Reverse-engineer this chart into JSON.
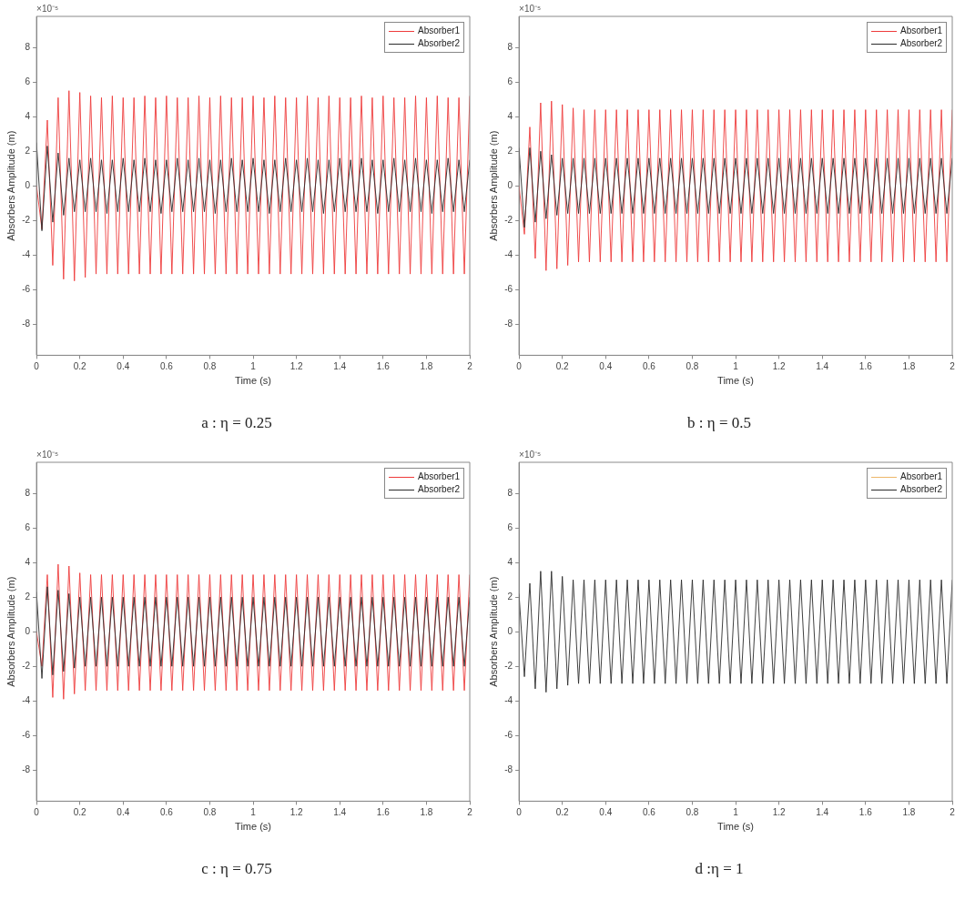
{
  "chart_data": [
    {
      "type": "line",
      "title": "a : η = 0.25",
      "xlabel": "Time (s)",
      "ylabel": "Absorbers Amplitude (m)",
      "annotations": [
        "×10⁻⁵"
      ],
      "legend": "top right",
      "marker": "none",
      "xlim": [
        0,
        2
      ],
      "ylim": [
        -9.8,
        9.8
      ],
      "xticks": [
        0,
        0.2,
        0.4,
        0.6,
        0.8,
        1,
        1.2,
        1.4,
        1.6,
        1.8,
        2
      ],
      "yticks": [
        -8,
        -6,
        -4,
        -2,
        0,
        2,
        4,
        6,
        8
      ],
      "x": [
        0,
        0.025,
        0.05,
        0.075,
        0.1,
        0.125,
        0.15,
        0.175,
        0.2,
        0.225,
        0.25,
        0.275,
        0.3,
        0.325,
        0.35,
        0.375,
        0.4,
        0.425,
        0.45,
        0.475,
        0.5,
        0.525,
        0.55,
        0.575,
        0.6,
        0.625,
        0.65,
        0.675,
        0.7,
        0.725,
        0.75,
        0.775,
        0.8,
        0.825,
        0.85,
        0.875,
        0.9,
        0.925,
        0.95,
        0.975,
        1,
        1.025,
        1.05,
        1.075,
        1.1,
        1.125,
        1.15,
        1.175,
        1.2,
        1.225,
        1.25,
        1.275,
        1.3,
        1.325,
        1.35,
        1.375,
        1.4,
        1.425,
        1.45,
        1.475,
        1.5,
        1.525,
        1.55,
        1.575,
        1.6,
        1.625,
        1.65,
        1.675,
        1.7,
        1.725,
        1.75,
        1.775,
        1.8,
        1.825,
        1.85,
        1.875,
        1.9,
        1.925,
        1.95,
        1.975,
        2
      ],
      "series": [
        {
          "name": "Absorber1",
          "color": "#ee3b3b",
          "values": [
            0,
            -2.5,
            3.8,
            -4.6,
            5.1,
            -5.4,
            5.5,
            -5.5,
            5.4,
            -5.3,
            5.2,
            -5.1,
            5.1,
            -5.1,
            5.2,
            -5.1,
            5.1,
            -5.1,
            5.1,
            -5.1,
            5.2,
            -5.1,
            5.1,
            -5.1,
            5.2,
            -5.1,
            5.1,
            -5.1,
            5.1,
            -5.1,
            5.2,
            -5.1,
            5.1,
            -5.1,
            5.2,
            -5.1,
            5.1,
            -5.1,
            5.1,
            -5.1,
            5.2,
            -5.1,
            5.1,
            -5.1,
            5.2,
            -5.1,
            5.1,
            -5.1,
            5.1,
            -5.1,
            5.2,
            -5.1,
            5.1,
            -5.1,
            5.2,
            -5.1,
            5.1,
            -5.1,
            5.1,
            -5.1,
            5.2,
            -5.1,
            5.1,
            -5.1,
            5.2,
            -5.1,
            5.1,
            -5.1,
            5.1,
            -5.1,
            5.2,
            -5.1,
            5.1,
            -5.1,
            5.2,
            -5.1,
            5.1,
            -5.1,
            5.1,
            -5.1,
            5.2
          ]
        },
        {
          "name": "Absorber2",
          "color": "#2b2b2b",
          "values": [
            2.5,
            -2.6,
            2.3,
            -2.1,
            1.9,
            -1.7,
            1.6,
            -1.5,
            1.5,
            -1.5,
            1.6,
            -1.5,
            1.5,
            -1.6,
            1.5,
            -1.5,
            1.6,
            -1.5,
            1.5,
            -1.5,
            1.6,
            -1.5,
            1.5,
            -1.6,
            1.5,
            -1.5,
            1.6,
            -1.5,
            1.5,
            -1.5,
            1.6,
            -1.5,
            1.5,
            -1.6,
            1.5,
            -1.5,
            1.6,
            -1.5,
            1.5,
            -1.5,
            1.6,
            -1.5,
            1.5,
            -1.6,
            1.5,
            -1.5,
            1.6,
            -1.5,
            1.5,
            -1.5,
            1.6,
            -1.5,
            1.5,
            -1.6,
            1.5,
            -1.5,
            1.6,
            -1.5,
            1.5,
            -1.5,
            1.6,
            -1.5,
            1.5,
            -1.6,
            1.5,
            -1.5,
            1.6,
            -1.5,
            1.5,
            -1.5,
            1.6,
            -1.5,
            1.5,
            -1.6,
            1.5,
            -1.5,
            1.6,
            -1.5,
            1.5,
            -1.5,
            1.5
          ]
        }
      ]
    },
    {
      "type": "line",
      "title": "b : η = 0.5",
      "xlabel": "Time (s)",
      "ylabel": "Absorbers Amplitude (m)",
      "annotations": [
        "×10⁻⁵"
      ],
      "legend": "top right",
      "marker": "none",
      "xlim": [
        0,
        2
      ],
      "ylim": [
        -9.8,
        9.8
      ],
      "xticks": [
        0,
        0.2,
        0.4,
        0.6,
        0.8,
        1,
        1.2,
        1.4,
        1.6,
        1.8,
        2
      ],
      "yticks": [
        -8,
        -6,
        -4,
        -2,
        0,
        2,
        4,
        6,
        8
      ],
      "x": [
        0,
        0.025,
        0.05,
        0.075,
        0.1,
        0.125,
        0.15,
        0.175,
        0.2,
        0.225,
        0.25,
        0.275,
        0.3,
        0.325,
        0.35,
        0.375,
        0.4,
        0.425,
        0.45,
        0.475,
        0.5,
        0.525,
        0.55,
        0.575,
        0.6,
        0.625,
        0.65,
        0.675,
        0.7,
        0.725,
        0.75,
        0.775,
        0.8,
        0.825,
        0.85,
        0.875,
        0.9,
        0.925,
        0.95,
        0.975,
        1,
        1.025,
        1.05,
        1.075,
        1.1,
        1.125,
        1.15,
        1.175,
        1.2,
        1.225,
        1.25,
        1.275,
        1.3,
        1.325,
        1.35,
        1.375,
        1.4,
        1.425,
        1.45,
        1.475,
        1.5,
        1.525,
        1.55,
        1.575,
        1.6,
        1.625,
        1.65,
        1.675,
        1.7,
        1.725,
        1.75,
        1.775,
        1.8,
        1.825,
        1.85,
        1.875,
        1.9,
        1.925,
        1.95,
        1.975,
        2
      ],
      "series": [
        {
          "name": "Absorber1",
          "color": "#ee3b3b",
          "values": [
            0,
            -2.8,
            3.4,
            -4.2,
            4.8,
            -4.9,
            4.9,
            -4.8,
            4.7,
            -4.6,
            4.5,
            -4.4,
            4.4,
            -4.4,
            4.4,
            -4.4,
            4.4,
            -4.4,
            4.4,
            -4.4,
            4.4,
            -4.4,
            4.4,
            -4.4,
            4.4,
            -4.4,
            4.4,
            -4.4,
            4.4,
            -4.4,
            4.4,
            -4.4,
            4.4,
            -4.4,
            4.4,
            -4.4,
            4.4,
            -4.4,
            4.4,
            -4.4,
            4.4,
            -4.4,
            4.4,
            -4.4,
            4.4,
            -4.4,
            4.4,
            -4.4,
            4.4,
            -4.4,
            4.4,
            -4.4,
            4.4,
            -4.4,
            4.4,
            -4.4,
            4.4,
            -4.4,
            4.4,
            -4.4,
            4.4,
            -4.4,
            4.4,
            -4.4,
            4.4,
            -4.4,
            4.4,
            -4.4,
            4.4,
            -4.4,
            4.4,
            -4.4,
            4.4,
            -4.4,
            4.4,
            -4.4,
            4.4,
            -4.4,
            4.4,
            -4.4,
            4.4
          ]
        },
        {
          "name": "Absorber2",
          "color": "#2b2b2b",
          "values": [
            2.2,
            -2.4,
            2.2,
            -2.1,
            2.0,
            -1.9,
            1.8,
            -1.7,
            1.6,
            -1.6,
            1.6,
            -1.6,
            1.6,
            -1.6,
            1.6,
            -1.6,
            1.6,
            -1.6,
            1.6,
            -1.6,
            1.6,
            -1.6,
            1.6,
            -1.6,
            1.6,
            -1.6,
            1.6,
            -1.6,
            1.6,
            -1.6,
            1.6,
            -1.6,
            1.6,
            -1.6,
            1.6,
            -1.6,
            1.6,
            -1.6,
            1.6,
            -1.6,
            1.6,
            -1.6,
            1.6,
            -1.6,
            1.6,
            -1.6,
            1.6,
            -1.6,
            1.6,
            -1.6,
            1.6,
            -1.6,
            1.6,
            -1.6,
            1.6,
            -1.6,
            1.6,
            -1.6,
            1.6,
            -1.6,
            1.6,
            -1.6,
            1.6,
            -1.6,
            1.6,
            -1.6,
            1.6,
            -1.6,
            1.6,
            -1.6,
            1.6,
            -1.6,
            1.6,
            -1.6,
            1.6,
            -1.6,
            1.6,
            -1.6,
            1.6,
            -1.6,
            1.6
          ]
        }
      ]
    },
    {
      "type": "line",
      "title": "c : η = 0.75",
      "xlabel": "Time (s)",
      "ylabel": "Absorbers Amplitude (m)",
      "annotations": [
        "×10⁻⁵"
      ],
      "legend": "top right",
      "marker": "none",
      "xlim": [
        0,
        2
      ],
      "ylim": [
        -9.8,
        9.8
      ],
      "xticks": [
        0,
        0.2,
        0.4,
        0.6,
        0.8,
        1,
        1.2,
        1.4,
        1.6,
        1.8,
        2
      ],
      "yticks": [
        -8,
        -6,
        -4,
        -2,
        0,
        2,
        4,
        6,
        8
      ],
      "x": [
        0,
        0.025,
        0.05,
        0.075,
        0.1,
        0.125,
        0.15,
        0.175,
        0.2,
        0.225,
        0.25,
        0.275,
        0.3,
        0.325,
        0.35,
        0.375,
        0.4,
        0.425,
        0.45,
        0.475,
        0.5,
        0.525,
        0.55,
        0.575,
        0.6,
        0.625,
        0.65,
        0.675,
        0.7,
        0.725,
        0.75,
        0.775,
        0.8,
        0.825,
        0.85,
        0.875,
        0.9,
        0.925,
        0.95,
        0.975,
        1,
        1.025,
        1.05,
        1.075,
        1.1,
        1.125,
        1.15,
        1.175,
        1.2,
        1.225,
        1.25,
        1.275,
        1.3,
        1.325,
        1.35,
        1.375,
        1.4,
        1.425,
        1.45,
        1.475,
        1.5,
        1.525,
        1.55,
        1.575,
        1.6,
        1.625,
        1.65,
        1.675,
        1.7,
        1.725,
        1.75,
        1.775,
        1.8,
        1.825,
        1.85,
        1.875,
        1.9,
        1.925,
        1.95,
        1.975,
        2
      ],
      "series": [
        {
          "name": "Absorber1",
          "color": "#ee3b3b",
          "values": [
            0,
            -2.0,
            3.3,
            -3.8,
            3.9,
            -3.9,
            3.8,
            -3.6,
            3.4,
            -3.4,
            3.3,
            -3.4,
            3.3,
            -3.4,
            3.3,
            -3.4,
            3.3,
            -3.4,
            3.3,
            -3.4,
            3.3,
            -3.4,
            3.3,
            -3.4,
            3.3,
            -3.4,
            3.3,
            -3.4,
            3.3,
            -3.4,
            3.3,
            -3.4,
            3.3,
            -3.4,
            3.3,
            -3.4,
            3.3,
            -3.4,
            3.3,
            -3.4,
            3.3,
            -3.4,
            3.3,
            -3.4,
            3.3,
            -3.4,
            3.3,
            -3.4,
            3.3,
            -3.4,
            3.3,
            -3.4,
            3.3,
            -3.4,
            3.3,
            -3.4,
            3.3,
            -3.4,
            3.3,
            -3.4,
            3.3,
            -3.4,
            3.3,
            -3.4,
            3.3,
            -3.4,
            3.3,
            -3.4,
            3.3,
            -3.4,
            3.3,
            -3.4,
            3.3,
            -3.4,
            3.3,
            -3.4,
            3.3,
            -3.4,
            3.3,
            -3.4,
            3.3
          ]
        },
        {
          "name": "Absorber2",
          "color": "#2b2b2b",
          "values": [
            2.3,
            -2.7,
            2.6,
            -2.5,
            2.4,
            -2.3,
            2.2,
            -2.1,
            2.0,
            -2.0,
            2.0,
            -2.0,
            2.0,
            -2.0,
            2.0,
            -2.0,
            2.0,
            -2.0,
            2.0,
            -2.0,
            2.0,
            -2.0,
            2.0,
            -2.0,
            2.0,
            -2.0,
            2.0,
            -2.0,
            2.0,
            -2.0,
            2.0,
            -2.0,
            2.0,
            -2.0,
            2.0,
            -2.0,
            2.0,
            -2.0,
            2.0,
            -2.0,
            2.0,
            -2.0,
            2.0,
            -2.0,
            2.0,
            -2.0,
            2.0,
            -2.0,
            2.0,
            -2.0,
            2.0,
            -2.0,
            2.0,
            -2.0,
            2.0,
            -2.0,
            2.0,
            -2.0,
            2.0,
            -2.0,
            2.0,
            -2.0,
            2.0,
            -2.0,
            2.0,
            -2.0,
            2.0,
            -2.0,
            2.0,
            -2.0,
            2.0,
            -2.0,
            2.0,
            -2.0,
            2.0,
            -2.0,
            2.0,
            -2.0,
            2.0,
            -2.0,
            2.0
          ]
        }
      ]
    },
    {
      "type": "line",
      "title": "d :η = 1",
      "xlabel": "Time (s)",
      "ylabel": "Absorbers Amplitude (m)",
      "annotations": [
        "×10⁻⁵"
      ],
      "legend": "top right",
      "marker": "none",
      "xlim": [
        0,
        2
      ],
      "ylim": [
        -9.8,
        9.8
      ],
      "xticks": [
        0,
        0.2,
        0.4,
        0.6,
        0.8,
        1,
        1.2,
        1.4,
        1.6,
        1.8,
        2
      ],
      "yticks": [
        -8,
        -6,
        -4,
        -2,
        0,
        2,
        4,
        6,
        8
      ],
      "x": [
        0,
        0.025,
        0.05,
        0.075,
        0.1,
        0.125,
        0.15,
        0.175,
        0.2,
        0.225,
        0.25,
        0.275,
        0.3,
        0.325,
        0.35,
        0.375,
        0.4,
        0.425,
        0.45,
        0.475,
        0.5,
        0.525,
        0.55,
        0.575,
        0.6,
        0.625,
        0.65,
        0.675,
        0.7,
        0.725,
        0.75,
        0.775,
        0.8,
        0.825,
        0.85,
        0.875,
        0.9,
        0.925,
        0.95,
        0.975,
        1,
        1.025,
        1.05,
        1.075,
        1.1,
        1.125,
        1.15,
        1.175,
        1.2,
        1.225,
        1.25,
        1.275,
        1.3,
        1.325,
        1.35,
        1.375,
        1.4,
        1.425,
        1.45,
        1.475,
        1.5,
        1.525,
        1.55,
        1.575,
        1.6,
        1.625,
        1.65,
        1.675,
        1.7,
        1.725,
        1.75,
        1.775,
        1.8,
        1.825,
        1.85,
        1.875,
        1.9,
        1.925,
        1.95,
        1.975,
        2
      ],
      "series": [
        {
          "name": "Absorber1",
          "color": "#edb76a",
          "values": [
            null,
            null,
            null,
            null,
            null,
            null,
            null,
            null,
            null,
            null,
            null,
            null,
            null,
            null,
            null,
            null,
            null,
            null,
            null,
            null,
            null,
            null,
            null,
            null,
            null,
            null,
            null,
            null,
            null,
            null,
            null,
            null,
            null,
            null,
            null,
            null,
            null,
            null,
            null,
            null,
            null,
            null,
            null,
            null,
            null,
            null,
            null,
            null,
            null,
            null,
            null,
            null,
            null,
            null,
            null,
            null,
            null,
            null,
            null,
            null,
            null,
            null,
            null,
            null,
            null,
            null,
            null,
            null,
            null,
            null,
            null,
            null,
            null,
            null,
            null,
            null,
            null,
            null,
            null,
            null,
            null
          ]
        },
        {
          "name": "Absorber2",
          "color": "#2b2b2b",
          "values": [
            2.2,
            -2.6,
            2.8,
            -3.3,
            3.5,
            -3.5,
            3.5,
            -3.3,
            3.2,
            -3.1,
            3.0,
            -3.0,
            3.0,
            -3.0,
            3.0,
            -3.0,
            3.0,
            -3.0,
            3.0,
            -3.0,
            3.0,
            -3.0,
            3.0,
            -3.0,
            3.0,
            -3.0,
            3.0,
            -3.0,
            3.0,
            -3.0,
            3.0,
            -3.0,
            3.0,
            -3.0,
            3.0,
            -3.0,
            3.0,
            -3.0,
            3.0,
            -3.0,
            3.0,
            -3.0,
            3.0,
            -3.0,
            3.0,
            -3.0,
            3.0,
            -3.0,
            3.0,
            -3.0,
            3.0,
            -3.0,
            3.0,
            -3.0,
            3.0,
            -3.0,
            3.0,
            -3.0,
            3.0,
            -3.0,
            3.0,
            -3.0,
            3.0,
            -3.0,
            3.0,
            -3.0,
            3.0,
            -3.0,
            3.0,
            -3.0,
            3.0,
            -3.0,
            3.0,
            -3.0,
            3.0,
            -3.0,
            3.0,
            -3.0,
            3.0,
            -3.0,
            3.0
          ]
        }
      ]
    }
  ]
}
